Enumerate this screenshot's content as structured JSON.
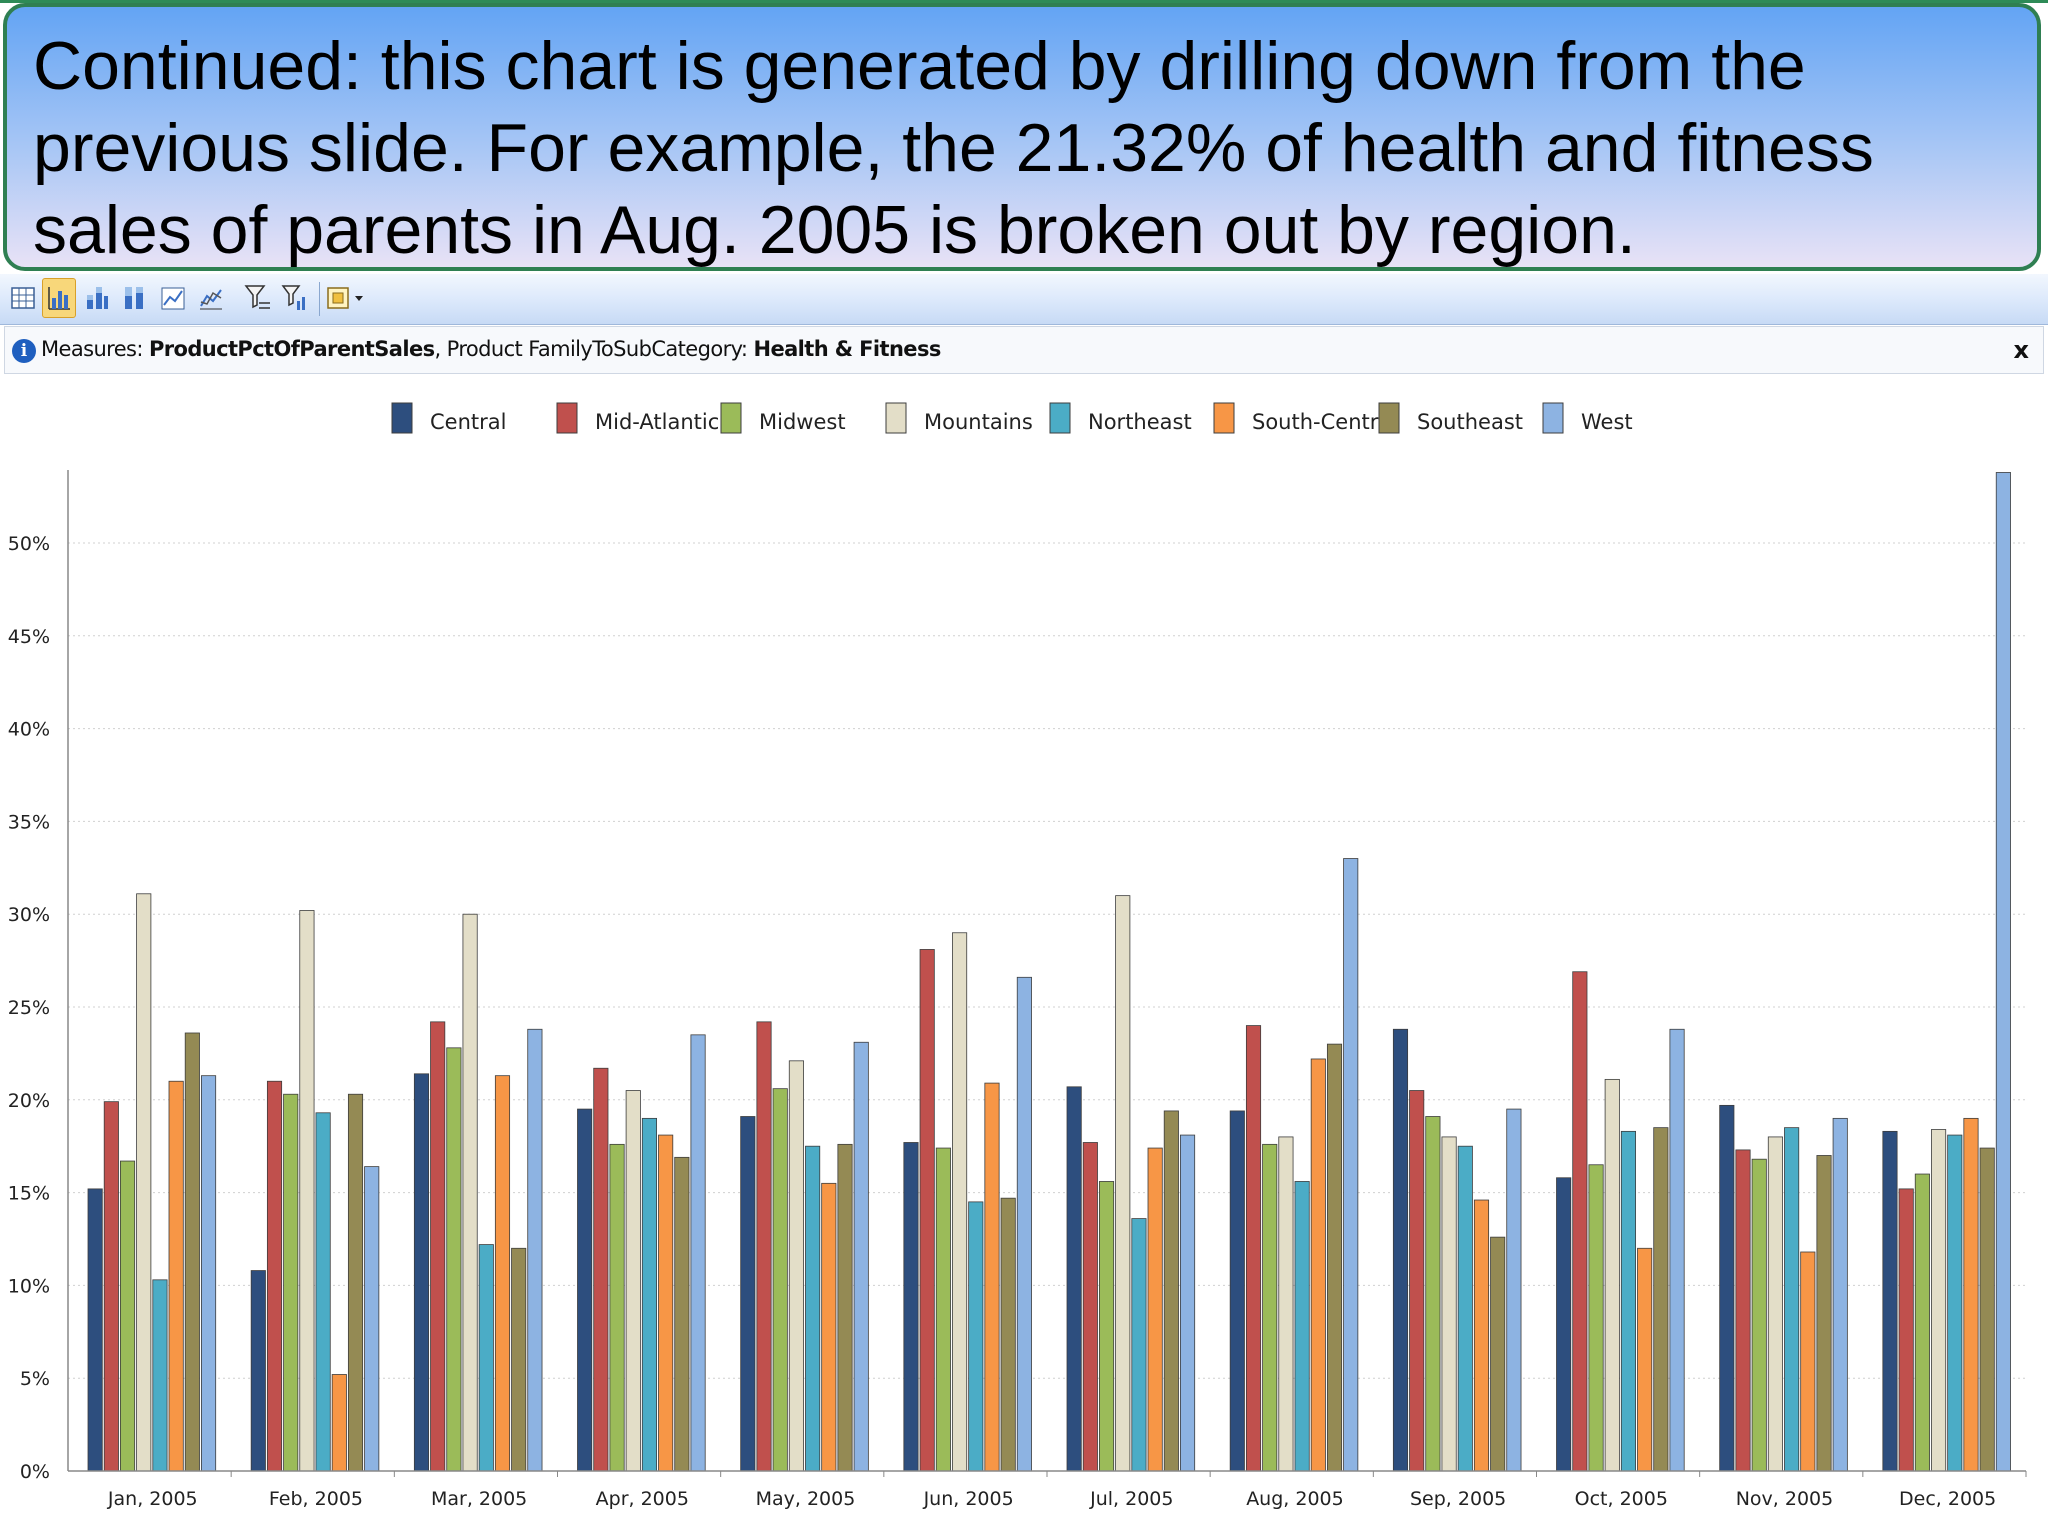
{
  "caption": {
    "text": "Continued:  this chart is generated by drilling down from the previous slide.  For example, the 21.32% of health and fitness sales of parents in Aug. 2005 is broken out by region."
  },
  "toolbar": {
    "buttons": [
      {
        "icon": "grid-icon"
      },
      {
        "icon": "column-chart-icon",
        "active": true
      },
      {
        "icon": "stacked-column-icon"
      },
      {
        "icon": "percent-stacked-column-icon"
      },
      {
        "icon": "line-chart-icon"
      },
      {
        "icon": "line-markers-icon"
      },
      {
        "icon": "filter-icon"
      },
      {
        "icon": "filter-chart-icon"
      },
      {
        "icon": "options-dropdown-icon"
      }
    ]
  },
  "info_bar": {
    "measures_label": "Measures:",
    "measure_value": "ProductPctOfParentSales",
    "separator": ",",
    "filter_label": "Product FamilyToSubCategory:",
    "filter_value": "Health & Fitness",
    "close_label": "x"
  },
  "chart_data": {
    "type": "bar",
    "categories": [
      "Jan, 2005",
      "Feb, 2005",
      "Mar, 2005",
      "Apr, 2005",
      "May, 2005",
      "Jun, 2005",
      "Jul, 2005",
      "Aug, 2005",
      "Sep, 2005",
      "Oct, 2005",
      "Nov, 2005",
      "Dec, 2005"
    ],
    "series": [
      {
        "name": "Central",
        "color": "#2d4e7e",
        "values": [
          15.2,
          10.8,
          21.4,
          19.5,
          19.1,
          17.7,
          20.7,
          19.4,
          23.8,
          15.8,
          19.7,
          18.3
        ]
      },
      {
        "name": "Mid-Atlantic",
        "color": "#c0504d",
        "values": [
          19.9,
          21.0,
          24.2,
          21.7,
          24.2,
          28.1,
          17.7,
          24.0,
          20.5,
          26.9,
          17.3,
          15.2
        ]
      },
      {
        "name": "Midwest",
        "color": "#9bbb59",
        "values": [
          16.7,
          20.3,
          22.8,
          17.6,
          20.6,
          17.4,
          15.6,
          17.6,
          19.1,
          16.5,
          16.8,
          16.0
        ]
      },
      {
        "name": "Mountains",
        "color": "#e3dec8",
        "values": [
          31.1,
          30.2,
          30.0,
          20.5,
          22.1,
          29.0,
          31.0,
          18.0,
          18.0,
          21.1,
          18.0,
          18.4
        ]
      },
      {
        "name": "Northeast",
        "color": "#4bacc6",
        "values": [
          10.3,
          19.3,
          12.2,
          19.0,
          17.5,
          14.5,
          13.6,
          15.6,
          17.5,
          18.3,
          18.5,
          18.1
        ]
      },
      {
        "name": "South-Central",
        "color": "#f79646",
        "values": [
          21.0,
          5.2,
          21.3,
          18.1,
          15.5,
          20.9,
          17.4,
          22.2,
          14.6,
          12.0,
          11.8,
          19.0
        ]
      },
      {
        "name": "Southeast",
        "color": "#948a54",
        "values": [
          23.6,
          20.3,
          12.0,
          16.9,
          17.6,
          14.7,
          19.4,
          23.0,
          12.6,
          18.5,
          17.0,
          17.4
        ]
      },
      {
        "name": "West",
        "color": "#8db3e2",
        "values": [
          21.3,
          16.4,
          23.8,
          23.5,
          23.1,
          26.6,
          18.1,
          33.0,
          19.5,
          23.8,
          19.0,
          53.8
        ]
      }
    ],
    "yticks": [
      "0%",
      "5%",
      "10%",
      "15%",
      "20%",
      "25%",
      "30%",
      "35%",
      "40%",
      "45%",
      "50%"
    ],
    "ylim": [
      0,
      54
    ],
    "grid": true,
    "legend_position": "top-center",
    "title": "",
    "xlabel": "",
    "ylabel": ""
  }
}
